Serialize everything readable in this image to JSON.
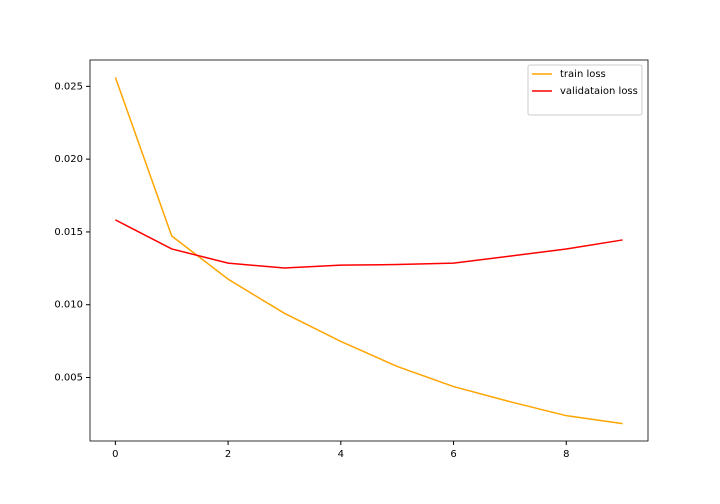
{
  "chart_data": {
    "type": "line",
    "x": [
      0,
      1,
      2,
      3,
      4,
      5,
      6,
      7,
      8,
      9
    ],
    "series": [
      {
        "name": "train loss",
        "color": "orange",
        "values": [
          0.02562,
          0.01472,
          0.01176,
          0.00941,
          0.00748,
          0.00576,
          0.00438,
          0.00334,
          0.00238,
          0.00183
        ]
      },
      {
        "name": "validataion loss",
        "color": "red",
        "values": [
          0.01583,
          0.01383,
          0.01286,
          0.01252,
          0.01272,
          0.01276,
          0.01286,
          0.01334,
          0.01383,
          0.01445
        ]
      }
    ],
    "xlim": [
      -0.45,
      9.45
    ],
    "xticks": [
      0,
      2,
      4,
      6,
      8
    ],
    "ylim": [
      0.00064,
      0.02681
    ],
    "yticks": [
      0.005,
      {
        "value": 0.01,
        "label": "0.010"
      },
      0.015,
      {
        "value": 0.02,
        "label": "0.020"
      },
      0.025
    ],
    "legend": "upper right"
  }
}
